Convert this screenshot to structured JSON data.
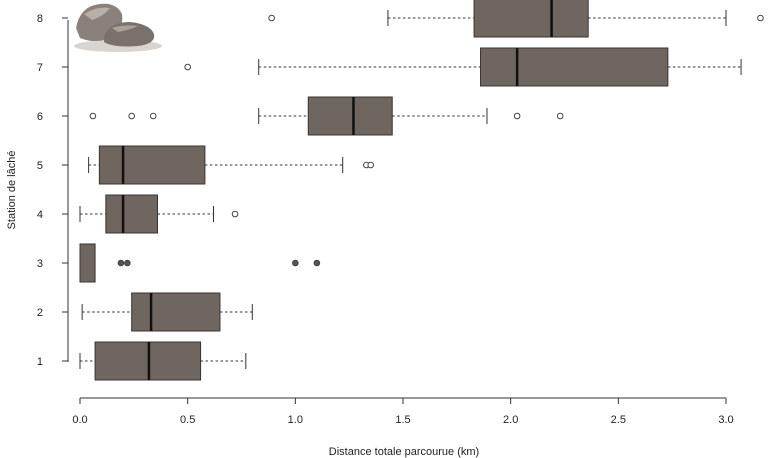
{
  "chart_data": {
    "type": "boxplot",
    "orientation": "horizontal",
    "xlabel": "Distance totale parcourue (km)",
    "ylabel": "Station de lâché",
    "xlim": [
      0,
      3.0
    ],
    "xticks": [
      "0.0",
      "0.5",
      "1.0",
      "1.5",
      "2.0",
      "2.5",
      "3.0"
    ],
    "grid": false,
    "colors": {
      "box_fill": "#6f6660",
      "box_stroke": "#3a3430",
      "axis": "#333333",
      "outlier_open": "#ffffff",
      "outlier_filled": "#555555"
    },
    "series": [
      {
        "name": "1",
        "whisker_low": 0.0,
        "q1": 0.07,
        "median": 0.32,
        "q3": 0.56,
        "whisker_high": 0.77,
        "outliers": [],
        "outlier_style": "open"
      },
      {
        "name": "2",
        "whisker_low": 0.01,
        "q1": 0.24,
        "median": 0.33,
        "q3": 0.65,
        "whisker_high": 0.8,
        "outliers": [],
        "outlier_style": "open"
      },
      {
        "name": "3",
        "whisker_low": 0.0,
        "q1": 0.0,
        "median": 0.0,
        "q3": 0.07,
        "whisker_high": 0.07,
        "outliers": [
          0.19,
          0.22,
          1.0,
          1.1
        ],
        "outlier_style": "filled"
      },
      {
        "name": "4",
        "whisker_low": 0.0,
        "q1": 0.12,
        "median": 0.2,
        "q3": 0.36,
        "whisker_high": 0.62,
        "outliers": [
          0.72
        ],
        "outlier_style": "open"
      },
      {
        "name": "5",
        "whisker_low": 0.04,
        "q1": 0.09,
        "median": 0.2,
        "q3": 0.58,
        "whisker_high": 1.22,
        "outliers": [
          1.33,
          1.35
        ],
        "outlier_style": "open"
      },
      {
        "name": "6",
        "whisker_low": 0.83,
        "q1": 1.06,
        "median": 1.27,
        "q3": 1.45,
        "whisker_high": 1.89,
        "outliers": [
          0.06,
          0.24,
          0.34,
          2.03,
          2.23
        ],
        "outlier_style": "open"
      },
      {
        "name": "7",
        "whisker_low": 0.83,
        "q1": 1.86,
        "median": 2.03,
        "q3": 2.73,
        "whisker_high": 3.07,
        "outliers": [
          0.5
        ],
        "outlier_style": "open"
      },
      {
        "name": "8",
        "whisker_low": 1.43,
        "q1": 1.83,
        "median": 2.19,
        "q3": 2.36,
        "whisker_high": 3.0,
        "outliers": [
          0.89,
          3.16
        ],
        "outlier_style": "open"
      }
    ]
  },
  "decoration": {
    "icon": "rocks-icon"
  }
}
